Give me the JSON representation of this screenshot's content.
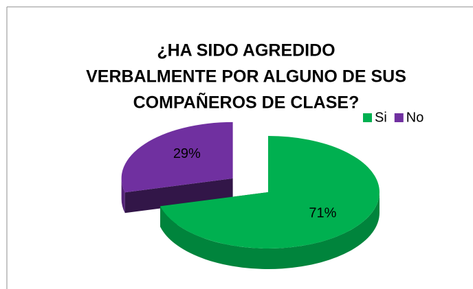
{
  "chart_data": {
    "type": "pie3d",
    "title": [
      "¿HA SIDO AGREDIDO",
      "VERBALMENTE POR ALGUNO DE SUS",
      "COMPAÑEROS DE CLASE?"
    ],
    "categories": [
      "Si",
      "No"
    ],
    "values": [
      71,
      29
    ],
    "value_labels": [
      "71%",
      "29%"
    ],
    "colors": [
      "#00b050",
      "#7030a0"
    ],
    "legend": "top-right"
  }
}
